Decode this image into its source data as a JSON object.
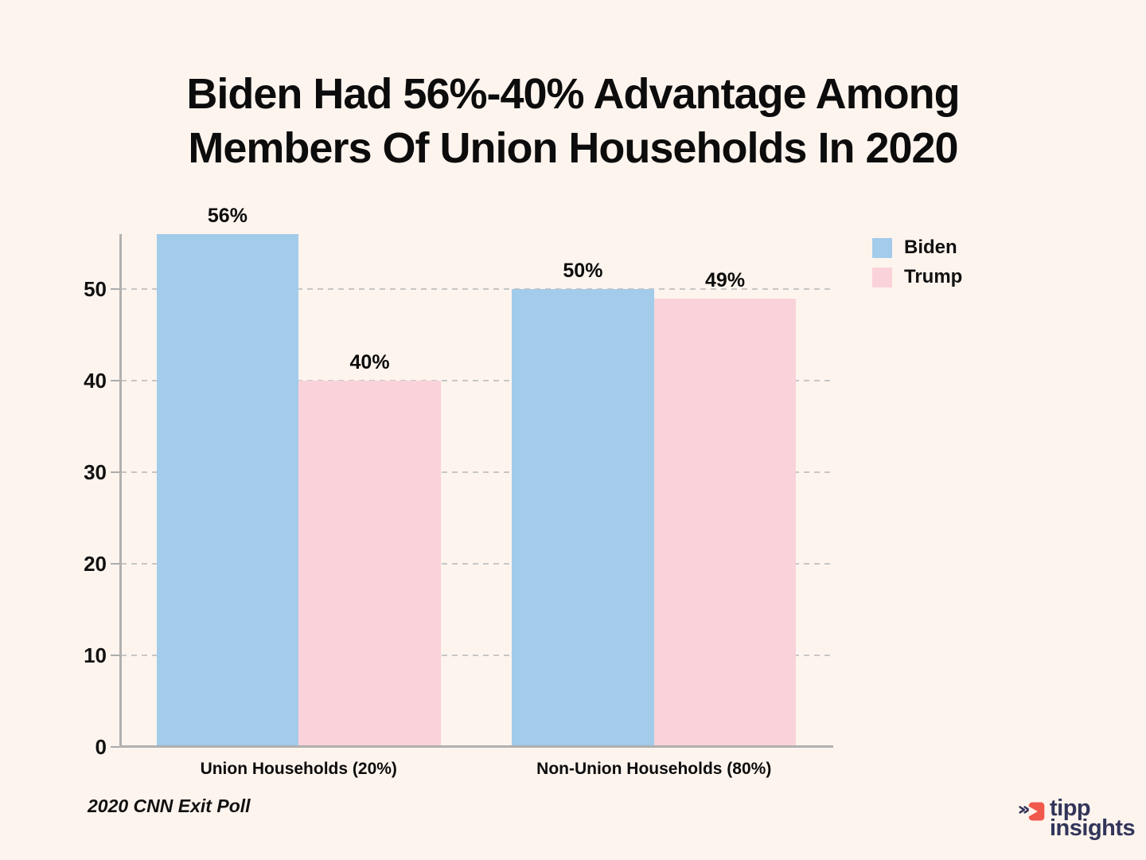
{
  "page": {
    "background_color": "#FEF4EE"
  },
  "title": {
    "line1": "Biden Had 56%-40% Advantage Among",
    "line2": "Members Of Union Households In 2020"
  },
  "legend": {
    "items": [
      {
        "label": "Biden",
        "color": "#A3CBEA"
      },
      {
        "label": "Trump",
        "color": "#F9D3D9"
      }
    ]
  },
  "footer": {
    "source_note": "2020 CNN Exit Poll",
    "brand": {
      "line1": "tipp",
      "line2": "insights",
      "navy_color": "#32355A",
      "red_color": "#F2594D"
    }
  },
  "chart_data": {
    "type": "bar",
    "title": "Biden Had 56%-40% Advantage Among Members Of Union Households In 2020",
    "categories": [
      "Union Households (20%)",
      "Non-Union Households (80%)"
    ],
    "series": [
      {
        "name": "Biden",
        "color": "#A3CBEA",
        "values": [
          56,
          50
        ],
        "data_labels": [
          "56%",
          "50%"
        ]
      },
      {
        "name": "Trump",
        "color": "#F9D3D9",
        "values": [
          40,
          49
        ],
        "data_labels": [
          "40%",
          "49%"
        ]
      }
    ],
    "ylim": [
      0,
      56
    ],
    "yticks": [
      0,
      10,
      20,
      30,
      40,
      50
    ],
    "xlabel": "",
    "ylabel": "",
    "grid": "horizontal-dashed",
    "legend_position": "upper-right",
    "source": "2020 CNN Exit Poll"
  }
}
